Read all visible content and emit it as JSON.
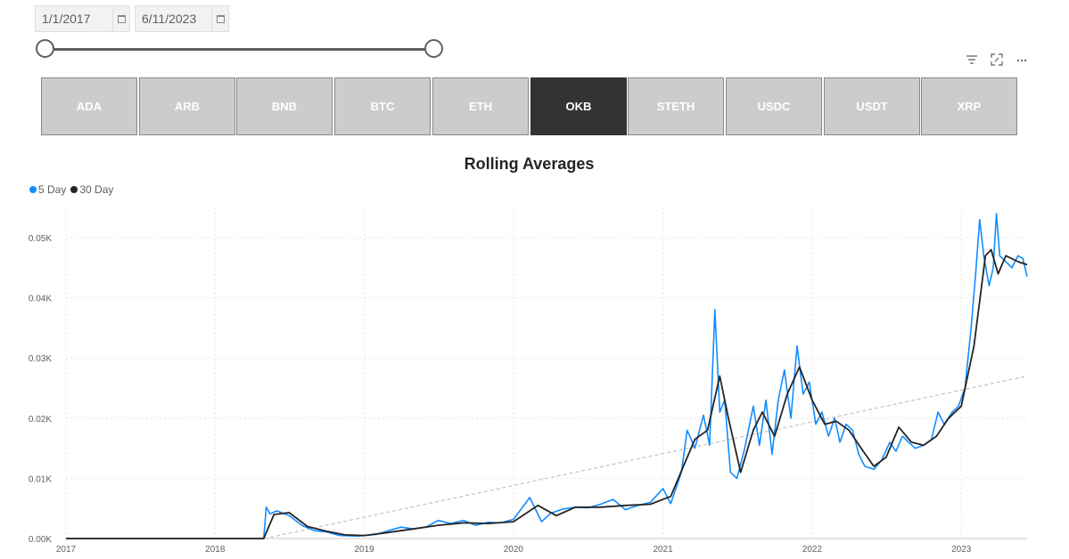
{
  "date_range": {
    "start": "1/1/2017",
    "end": "6/11/2023",
    "start_icon": "calendar-icon",
    "end_icon": "calendar-icon",
    "slider_start_fraction": 0,
    "slider_end_fraction": 1
  },
  "visual_header": {
    "filter_icon": "filter-icon",
    "focus_icon": "focus-mode-icon",
    "more_icon": "more-options-icon"
  },
  "tokens": {
    "items": [
      {
        "label": "ADA"
      },
      {
        "label": "ARB"
      },
      {
        "label": "BNB"
      },
      {
        "label": "BTC"
      },
      {
        "label": "ETH"
      },
      {
        "label": "OKB"
      },
      {
        "label": "STETH"
      },
      {
        "label": "USDC"
      },
      {
        "label": "USDT"
      },
      {
        "label": "XRP"
      }
    ],
    "selected": "OKB",
    "tile_color": "#cccccc",
    "selected_color": "#333333"
  },
  "chart_data": {
    "type": "line",
    "title": "Rolling Averages",
    "xlabel": "",
    "ylabel": "",
    "x_ticks": [
      "2017",
      "2018",
      "2019",
      "2020",
      "2021",
      "2022",
      "2023"
    ],
    "y_ticks": [
      "0.00K",
      "0.01K",
      "0.02K",
      "0.03K",
      "0.04K",
      "0.05K"
    ],
    "ylim": [
      0,
      0.055
    ],
    "grid": true,
    "legend_position": "top-left",
    "series": [
      {
        "name": "5 Day",
        "color": "#118dff",
        "points": [
          [
            "2017-01-01",
            0
          ],
          [
            "2018-04-30",
            0
          ],
          [
            "2018-05-06",
            0.0052
          ],
          [
            "2018-05-15",
            0.0041
          ],
          [
            "2018-06-01",
            0.0046
          ],
          [
            "2018-07-01",
            0.0038
          ],
          [
            "2018-08-01",
            0.0022
          ],
          [
            "2018-09-01",
            0.0013
          ],
          [
            "2018-10-01",
            0.0011
          ],
          [
            "2018-11-01",
            0.0005
          ],
          [
            "2018-12-15",
            0.0004
          ],
          [
            "2019-02-01",
            0.0007
          ],
          [
            "2019-03-01",
            0.0013
          ],
          [
            "2019-04-01",
            0.0019
          ],
          [
            "2019-05-01",
            0.0016
          ],
          [
            "2019-06-01",
            0.0019
          ],
          [
            "2019-07-01",
            0.003
          ],
          [
            "2019-08-01",
            0.0025
          ],
          [
            "2019-09-01",
            0.003
          ],
          [
            "2019-10-01",
            0.0022
          ],
          [
            "2019-11-01",
            0.0027
          ],
          [
            "2019-12-01",
            0.0026
          ],
          [
            "2020-01-01",
            0.0032
          ],
          [
            "2020-02-10",
            0.0068
          ],
          [
            "2020-03-10",
            0.0028
          ],
          [
            "2020-04-01",
            0.0042
          ],
          [
            "2020-05-01",
            0.0049
          ],
          [
            "2020-06-01",
            0.0052
          ],
          [
            "2020-07-01",
            0.0051
          ],
          [
            "2020-08-01",
            0.0057
          ],
          [
            "2020-09-01",
            0.0065
          ],
          [
            "2020-10-01",
            0.0048
          ],
          [
            "2020-11-01",
            0.0055
          ],
          [
            "2020-12-01",
            0.006
          ],
          [
            "2021-01-01",
            0.0083
          ],
          [
            "2021-01-20",
            0.0058
          ],
          [
            "2021-02-15",
            0.011
          ],
          [
            "2021-03-01",
            0.018
          ],
          [
            "2021-03-20",
            0.015
          ],
          [
            "2021-04-10",
            0.0205
          ],
          [
            "2021-04-25",
            0.0155
          ],
          [
            "2021-05-08",
            0.038
          ],
          [
            "2021-05-20",
            0.021
          ],
          [
            "2021-06-01",
            0.023
          ],
          [
            "2021-06-15",
            0.011
          ],
          [
            "2021-07-01",
            0.01
          ],
          [
            "2021-07-20",
            0.015
          ],
          [
            "2021-08-10",
            0.022
          ],
          [
            "2021-08-25",
            0.0155
          ],
          [
            "2021-09-10",
            0.023
          ],
          [
            "2021-09-25",
            0.014
          ],
          [
            "2021-10-10",
            0.023
          ],
          [
            "2021-10-25",
            0.028
          ],
          [
            "2021-11-10",
            0.02
          ],
          [
            "2021-11-25",
            0.032
          ],
          [
            "2021-12-10",
            0.024
          ],
          [
            "2021-12-25",
            0.026
          ],
          [
            "2022-01-10",
            0.019
          ],
          [
            "2022-01-25",
            0.021
          ],
          [
            "2022-02-10",
            0.017
          ],
          [
            "2022-02-25",
            0.02
          ],
          [
            "2022-03-10",
            0.016
          ],
          [
            "2022-03-25",
            0.019
          ],
          [
            "2022-04-10",
            0.018
          ],
          [
            "2022-04-25",
            0.014
          ],
          [
            "2022-05-10",
            0.012
          ],
          [
            "2022-06-01",
            0.0115
          ],
          [
            "2022-06-20",
            0.013
          ],
          [
            "2022-07-10",
            0.016
          ],
          [
            "2022-07-25",
            0.0145
          ],
          [
            "2022-08-10",
            0.017
          ],
          [
            "2022-08-25",
            0.016
          ],
          [
            "2022-09-10",
            0.015
          ],
          [
            "2022-10-01",
            0.0155
          ],
          [
            "2022-10-20",
            0.0165
          ],
          [
            "2022-11-05",
            0.021
          ],
          [
            "2022-11-20",
            0.019
          ],
          [
            "2022-12-10",
            0.021
          ],
          [
            "2022-12-25",
            0.022
          ],
          [
            "2023-01-10",
            0.025
          ],
          [
            "2023-01-25",
            0.035
          ],
          [
            "2023-02-05",
            0.044
          ],
          [
            "2023-02-15",
            0.053
          ],
          [
            "2023-02-25",
            0.047
          ],
          [
            "2023-03-10",
            0.042
          ],
          [
            "2023-03-20",
            0.045
          ],
          [
            "2023-03-28",
            0.054
          ],
          [
            "2023-04-05",
            0.047
          ],
          [
            "2023-04-20",
            0.046
          ],
          [
            "2023-05-05",
            0.045
          ],
          [
            "2023-05-20",
            0.047
          ],
          [
            "2023-06-01",
            0.0465
          ],
          [
            "2023-06-11",
            0.0435
          ]
        ]
      },
      {
        "name": "30 Day",
        "color": "#252423",
        "points": [
          [
            "2017-01-01",
            0
          ],
          [
            "2018-04-30",
            0
          ],
          [
            "2018-05-25",
            0.004
          ],
          [
            "2018-07-01",
            0.0043
          ],
          [
            "2018-08-15",
            0.002
          ],
          [
            "2018-10-01",
            0.0012
          ],
          [
            "2018-11-15",
            0.0006
          ],
          [
            "2019-01-01",
            0.0005
          ],
          [
            "2019-03-01",
            0.001
          ],
          [
            "2019-05-01",
            0.0016
          ],
          [
            "2019-07-01",
            0.0022
          ],
          [
            "2019-09-01",
            0.0026
          ],
          [
            "2019-11-01",
            0.0025
          ],
          [
            "2020-01-01",
            0.0028
          ],
          [
            "2020-03-01",
            0.0055
          ],
          [
            "2020-04-15",
            0.0038
          ],
          [
            "2020-06-01",
            0.0052
          ],
          [
            "2020-08-01",
            0.0052
          ],
          [
            "2020-10-01",
            0.0055
          ],
          [
            "2020-12-01",
            0.0057
          ],
          [
            "2021-01-20",
            0.007
          ],
          [
            "2021-02-20",
            0.012
          ],
          [
            "2021-03-20",
            0.0165
          ],
          [
            "2021-04-20",
            0.018
          ],
          [
            "2021-05-20",
            0.027
          ],
          [
            "2021-06-10",
            0.02
          ],
          [
            "2021-07-10",
            0.011
          ],
          [
            "2021-08-10",
            0.018
          ],
          [
            "2021-09-01",
            0.021
          ],
          [
            "2021-10-01",
            0.017
          ],
          [
            "2021-11-01",
            0.024
          ],
          [
            "2021-12-01",
            0.0285
          ],
          [
            "2022-01-01",
            0.023
          ],
          [
            "2022-02-01",
            0.019
          ],
          [
            "2022-03-01",
            0.0195
          ],
          [
            "2022-04-01",
            0.018
          ],
          [
            "2022-05-01",
            0.015
          ],
          [
            "2022-06-01",
            0.012
          ],
          [
            "2022-07-01",
            0.0135
          ],
          [
            "2022-08-01",
            0.0185
          ],
          [
            "2022-09-01",
            0.016
          ],
          [
            "2022-10-01",
            0.0155
          ],
          [
            "2022-11-01",
            0.017
          ],
          [
            "2022-12-01",
            0.02
          ],
          [
            "2023-01-01",
            0.022
          ],
          [
            "2023-02-01",
            0.032
          ],
          [
            "2023-03-01",
            0.047
          ],
          [
            "2023-03-15",
            0.048
          ],
          [
            "2023-04-01",
            0.044
          ],
          [
            "2023-04-20",
            0.047
          ],
          [
            "2023-05-20",
            0.046
          ],
          [
            "2023-06-11",
            0.0455
          ]
        ]
      }
    ],
    "trend_line": {
      "color": "#c8c6c4",
      "points": [
        [
          "2018-05-01",
          0
        ],
        [
          "2023-06-11",
          0.027
        ]
      ]
    }
  }
}
